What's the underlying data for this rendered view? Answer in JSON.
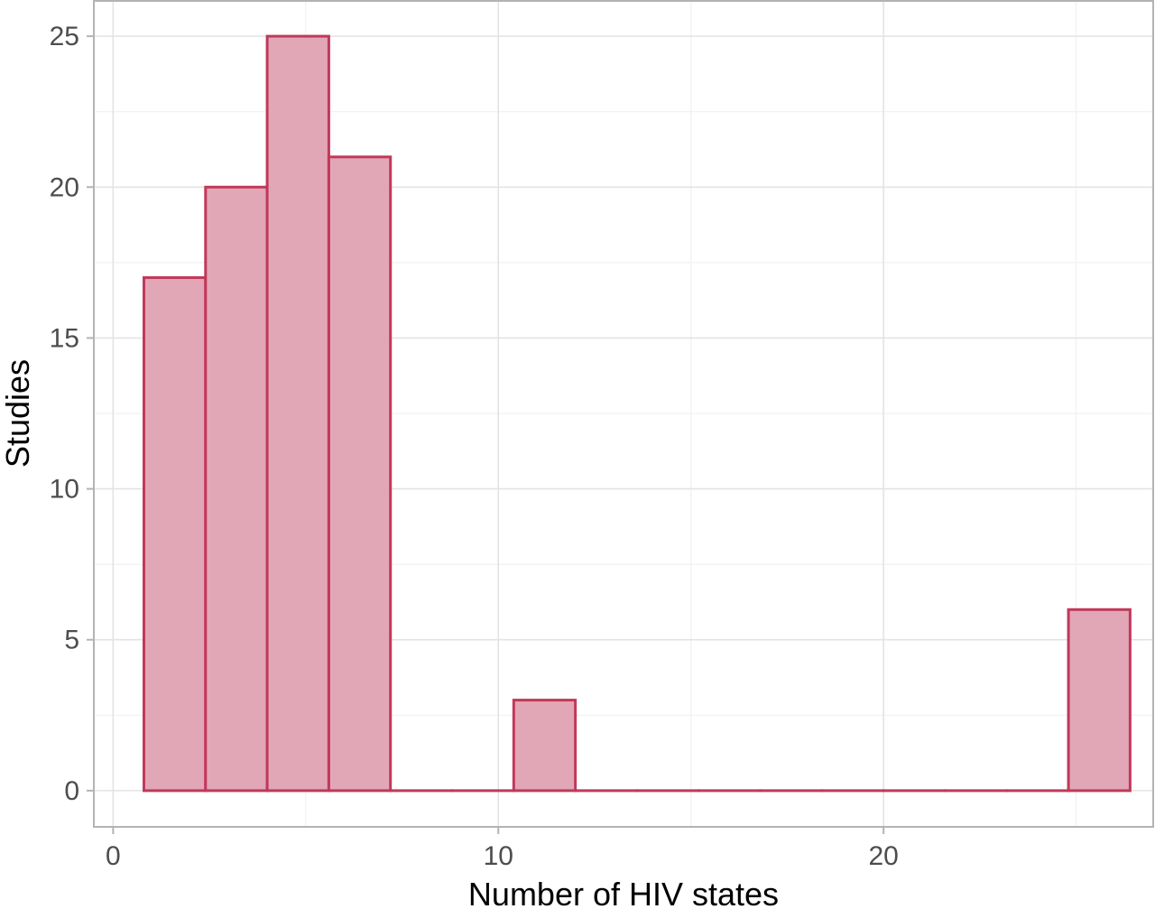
{
  "chart_data": {
    "type": "bar",
    "subtype": "histogram",
    "title": "",
    "xlabel": "Number of HIV states",
    "ylabel": "Studies",
    "xlim": [
      -0.5,
      27.0
    ],
    "ylim": [
      -1.2,
      26.2
    ],
    "x_ticks": [
      0,
      10,
      20
    ],
    "y_ticks": [
      0,
      5,
      10,
      15,
      20,
      25
    ],
    "bin_width": 1.6,
    "bins": [
      {
        "x_start": 0.8,
        "x_end": 2.4,
        "count": 17
      },
      {
        "x_start": 2.4,
        "x_end": 4.0,
        "count": 20
      },
      {
        "x_start": 4.0,
        "x_end": 5.6,
        "count": 25
      },
      {
        "x_start": 5.6,
        "x_end": 7.2,
        "count": 21
      },
      {
        "x_start": 7.2,
        "x_end": 8.8,
        "count": 0
      },
      {
        "x_start": 8.8,
        "x_end": 10.4,
        "count": 0
      },
      {
        "x_start": 10.4,
        "x_end": 12.0,
        "count": 3
      },
      {
        "x_start": 12.0,
        "x_end": 13.6,
        "count": 0
      },
      {
        "x_start": 13.6,
        "x_end": 15.2,
        "count": 0
      },
      {
        "x_start": 15.2,
        "x_end": 16.8,
        "count": 0
      },
      {
        "x_start": 16.8,
        "x_end": 18.4,
        "count": 0
      },
      {
        "x_start": 18.4,
        "x_end": 20.0,
        "count": 0
      },
      {
        "x_start": 20.0,
        "x_end": 21.6,
        "count": 0
      },
      {
        "x_start": 21.6,
        "x_end": 23.2,
        "count": 0
      },
      {
        "x_start": 23.2,
        "x_end": 24.8,
        "count": 0
      },
      {
        "x_start": 24.8,
        "x_end": 26.4,
        "count": 6
      }
    ],
    "grid": true,
    "legend": "none",
    "colors": {
      "bar_fill": "#e2a7b7",
      "bar_stroke": "#c0395a",
      "grid_major": "#e3e3e3",
      "grid_minor": "#f1f1f1",
      "panel_border": "#b3b3b3",
      "tick_text": "#4d4d4d",
      "title_text": "#000000"
    }
  }
}
